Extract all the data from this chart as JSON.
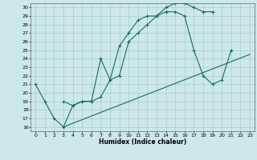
{
  "title": "",
  "xlabel": "Humidex (Indice chaleur)",
  "bg_color": "#cce8e8",
  "grid_color": "#aacccc",
  "line_color": "#1a6b5e",
  "xlim": [
    -0.5,
    23.5
  ],
  "ylim": [
    15.5,
    30.5
  ],
  "xticks": [
    0,
    1,
    2,
    3,
    4,
    5,
    6,
    7,
    8,
    9,
    10,
    11,
    12,
    13,
    14,
    15,
    16,
    17,
    18,
    19,
    20,
    21,
    22,
    23
  ],
  "yticks": [
    16,
    17,
    18,
    19,
    20,
    21,
    22,
    23,
    24,
    25,
    26,
    27,
    28,
    29,
    30
  ],
  "line1_x": [
    0,
    1,
    2,
    3,
    4,
    5,
    6,
    7,
    8,
    9,
    10,
    11,
    12,
    13,
    14,
    15,
    16,
    17,
    18,
    19
  ],
  "line1_y": [
    21,
    19,
    17,
    16,
    18.5,
    19,
    19,
    24,
    21.5,
    25.5,
    27,
    28.5,
    29,
    29,
    30,
    30.5,
    30.5,
    30,
    29.5,
    29.5
  ],
  "line2_x": [
    3,
    4,
    5,
    6,
    7,
    8,
    9,
    10,
    11,
    12,
    13,
    14,
    15,
    16,
    17,
    18,
    19,
    20,
    21
  ],
  "line2_y": [
    19,
    18.5,
    19,
    19,
    19.5,
    21.5,
    22,
    26,
    27,
    28,
    29,
    29.5,
    29.5,
    29,
    25,
    22,
    21,
    21.5,
    25
  ],
  "line3_x": [
    3,
    23
  ],
  "line3_y": [
    16,
    24.5
  ],
  "xlabel_fontsize": 5.5,
  "tick_fontsize": 4.5
}
